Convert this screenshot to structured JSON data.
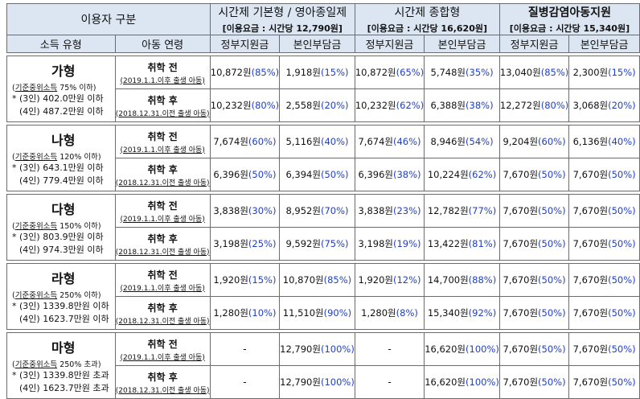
{
  "header": {
    "user_class": "이용자 구분",
    "income_type": "소득 유형",
    "child_age": "아동 연령",
    "groups": [
      {
        "title": "시간제 기본형 / 영아종일제",
        "fee": "[이용요금 : 시간당 12,790원]"
      },
      {
        "title": "시간제 종합형",
        "fee": "[이용요금 : 시간당 16,620원]"
      },
      {
        "title": "질병감염아동지원",
        "fee": "[이용요금 : 시간당 15,340원]"
      }
    ],
    "gov_label": "정부지원금",
    "self_label": "본인부담금"
  },
  "rows": [
    {
      "name": "가형",
      "note_prefix": "(",
      "note_u": "기준중위소득",
      "note_rest": " 75% 이하)",
      "line1": "* (3인) 402.0만원 이하",
      "line2": "(4인) 487.2만원 이하",
      "sub": [
        {
          "age": "취학 전",
          "birth": "(2019.1.1.이후 출생 아동)",
          "cells": [
            [
              "10,872원",
              "(85%)"
            ],
            [
              "1,918원",
              "(15%)"
            ],
            [
              "10,872원",
              "(65%)"
            ],
            [
              "5,748원",
              "(35%)"
            ],
            [
              "13,040원",
              "(85%)"
            ],
            [
              "2,300원",
              "(15%)"
            ]
          ]
        },
        {
          "age": "취학 후",
          "birth": "(2018.12.31.이전 출생 아동)",
          "cells": [
            [
              "10,232원",
              "(80%)"
            ],
            [
              "2,558원",
              "(20%)"
            ],
            [
              "10,232원",
              "(62%)"
            ],
            [
              "6,388원",
              "(38%)"
            ],
            [
              "12,272원",
              "(80%)"
            ],
            [
              "3,068원",
              "(20%)"
            ]
          ]
        }
      ]
    },
    {
      "name": "나형",
      "note_prefix": "(",
      "note_u": "기준중위소득",
      "note_rest": " 120% 이하)",
      "line1": "* (3인) 643.1만원 이하",
      "line2": "(4인) 779.4만원 이하",
      "sub": [
        {
          "age": "취학 전",
          "birth": "(2019.1.1.이후 출생 아동)",
          "cells": [
            [
              "7,674원",
              "(60%)"
            ],
            [
              "5,116원",
              "(40%)"
            ],
            [
              "7,674원",
              "(46%)"
            ],
            [
              "8,946원",
              "(54%)"
            ],
            [
              "9,204원",
              "(60%)"
            ],
            [
              "6,136원",
              "(40%)"
            ]
          ]
        },
        {
          "age": "취학 후",
          "birth": "(2018.12.31.이전 출생 아동)",
          "cells": [
            [
              "6,396원",
              "(50%)"
            ],
            [
              "6,394원",
              "(50%)"
            ],
            [
              "6,396원",
              "(38%)"
            ],
            [
              "10,224원",
              "(62%)"
            ],
            [
              "7,670원",
              "(50%)"
            ],
            [
              "7,670원",
              "(50%)"
            ]
          ]
        }
      ]
    },
    {
      "name": "다형",
      "note_prefix": "(",
      "note_u": "기준중위소득",
      "note_rest": " 150% 이하)",
      "line1": "* (3인) 803.9만원 이하",
      "line2": "(4인) 974.3만원 이하",
      "sub": [
        {
          "age": "취학 전",
          "birth": "(2019.1.1.이후 출생 아동)",
          "cells": [
            [
              "3,838원",
              "(30%)"
            ],
            [
              "8,952원",
              "(70%)"
            ],
            [
              "3,838원",
              "(23%)"
            ],
            [
              "12,782원",
              "(77%)"
            ],
            [
              "7,670원",
              "(50%)"
            ],
            [
              "7,670원",
              "(50%)"
            ]
          ]
        },
        {
          "age": "취학 후",
          "birth": "(2018.12.31.이전 출생 아동)",
          "cells": [
            [
              "3,198원",
              "(25%)"
            ],
            [
              "9,592원",
              "(75%)"
            ],
            [
              "3,198원",
              "(19%)"
            ],
            [
              "13,422원",
              "(81%)"
            ],
            [
              "7,670원",
              "(50%)"
            ],
            [
              "7,670원",
              "(50%)"
            ]
          ]
        }
      ]
    },
    {
      "name": "라형",
      "note_prefix": "(",
      "note_u": "기준중위소득",
      "note_rest": " 250% 이하)",
      "line1": "* (3인) 1339.8만원 이하",
      "line2": "(4인) 1623.7만원 이하",
      "sub": [
        {
          "age": "취학 전",
          "birth": "(2019.1.1.이후 출생 아동)",
          "cells": [
            [
              "1,920원",
              "(15%)"
            ],
            [
              "10,870원",
              "(85%)"
            ],
            [
              "1,920원",
              "(12%)"
            ],
            [
              "14,700원",
              "(88%)"
            ],
            [
              "7,670원",
              "(50%)"
            ],
            [
              "7,670원",
              "(50%)"
            ]
          ]
        },
        {
          "age": "취학 후",
          "birth": "(2018.12.31.이전 출생 아동)",
          "cells": [
            [
              "1,280원",
              "(10%)"
            ],
            [
              "11,510원",
              "(90%)"
            ],
            [
              "1,280원",
              "(8%)"
            ],
            [
              "15,340원",
              "(92%)"
            ],
            [
              "7,670원",
              "(50%)"
            ],
            [
              "7,670원",
              "(50%)"
            ]
          ]
        }
      ]
    },
    {
      "name": "마형",
      "note_prefix": "(",
      "note_u": "기준중위소득",
      "note_rest": " 250% 초과)",
      "line1": "* (3인) 1339.8만원 초과",
      "line2": "(4인) 1623.7만원 초과",
      "sub": [
        {
          "age": "취학 전",
          "birth": "(2019.1.1.이후 출생 아동)",
          "cells": [
            [
              "-",
              ""
            ],
            [
              "12,790원",
              "(100%)"
            ],
            [
              "-",
              ""
            ],
            [
              "16,620원",
              "(100%)"
            ],
            [
              "7,670원",
              "(50%)"
            ],
            [
              "7,670원",
              "(50%)"
            ]
          ]
        },
        {
          "age": "취학 후",
          "birth": "(2018.12.31.이전 출생 아동)",
          "cells": [
            [
              "-",
              ""
            ],
            [
              "12,790원",
              "(100%)"
            ],
            [
              "-",
              ""
            ],
            [
              "16,620원",
              "(100%)"
            ],
            [
              "7,670원",
              "(50%)"
            ],
            [
              "7,670원",
              "(50%)"
            ]
          ]
        }
      ]
    }
  ]
}
